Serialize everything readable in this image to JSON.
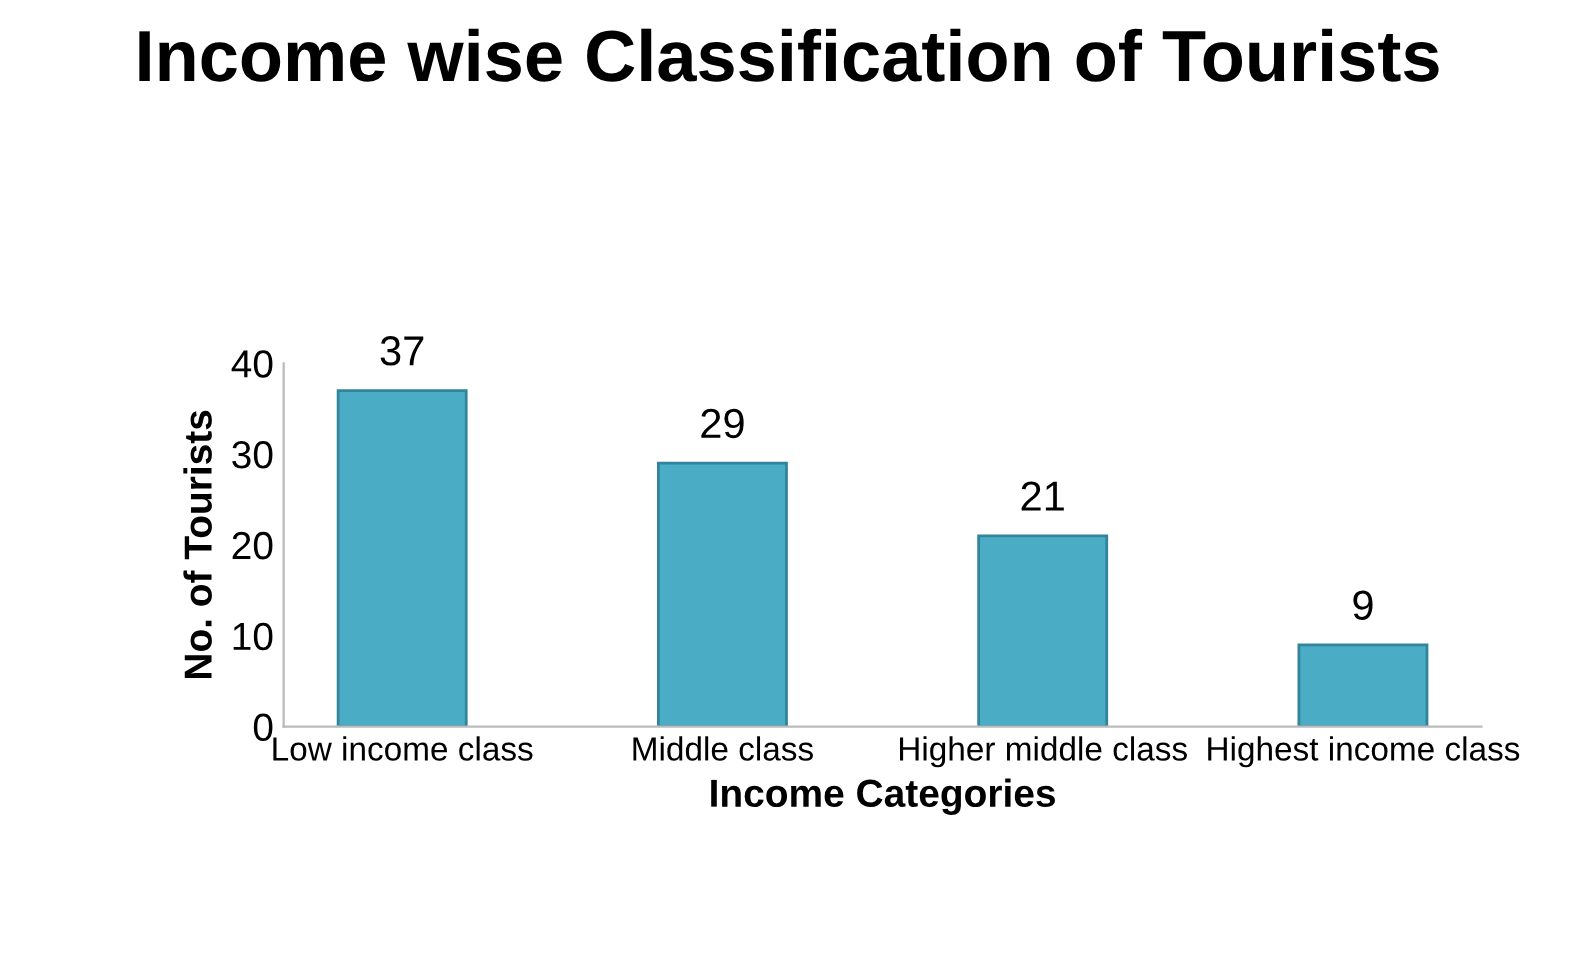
{
  "chart_data": {
    "type": "bar",
    "title": "Income wise Classification of Tourists",
    "xlabel": "Income Categories",
    "ylabel": "No. of Tourists",
    "categories": [
      "Low income class",
      "Middle class",
      "Higher middle class",
      "Highest income class"
    ],
    "values": [
      37,
      29,
      21,
      9
    ],
    "color": "#4bacc6",
    "ylim": [
      0,
      40
    ],
    "yticks": [
      0,
      10,
      20,
      30,
      40
    ],
    "grid": false,
    "data_labels": true
  }
}
